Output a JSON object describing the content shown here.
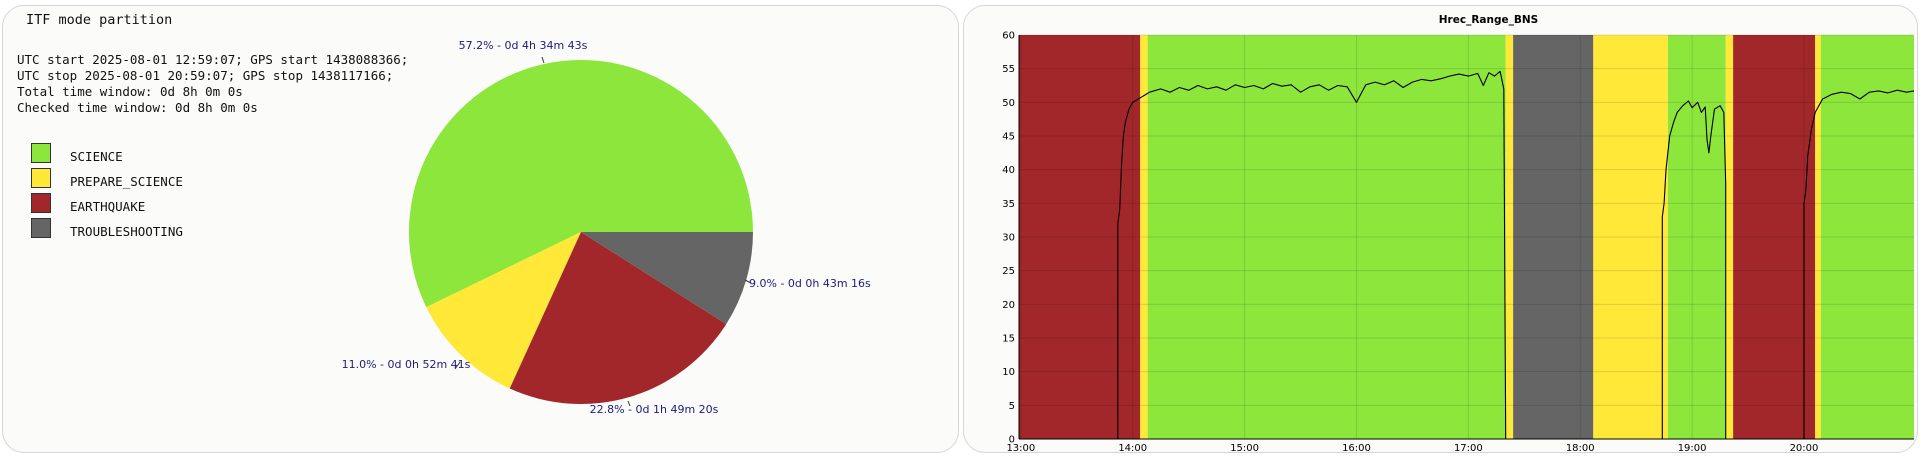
{
  "left": {
    "title": "ITF mode partition",
    "info_lines": [
      "UTC start 2025-08-01 12:59:07; GPS start 1438088366;",
      "UTC stop 2025-08-01 20:59:07; GPS stop 1438117166;",
      "Total time window: 0d 8h 0m 0s",
      "Checked time window: 0d 8h 0m 0s"
    ],
    "legend": [
      {
        "label": "SCIENCE",
        "color": "#8de63c"
      },
      {
        "label": "PREPARE_SCIENCE",
        "color": "#ffe838"
      },
      {
        "label": "EARTHQUAKE",
        "color": "#a2272a"
      },
      {
        "label": "TROUBLESHOOTING",
        "color": "#656565"
      }
    ]
  },
  "chart_data": [
    {
      "type": "pie",
      "slices": [
        {
          "name": "SCIENCE",
          "value": 57.2,
          "label": "57.2% - 0d 4h 34m 43s",
          "color": "#8de63c"
        },
        {
          "name": "PREPARE_SCIENCE",
          "value": 11.0,
          "label": "11.0% - 0d 0h 52m 41s",
          "color": "#ffe838"
        },
        {
          "name": "EARTHQUAKE",
          "value": 22.8,
          "label": "22.8% - 0d 1h 49m 20s",
          "color": "#a2272a"
        },
        {
          "name": "TROUBLESHOOTING",
          "value": 9.0,
          "label": "9.0% - 0d 0h 43m 16s",
          "color": "#656565"
        }
      ]
    },
    {
      "type": "line",
      "title": "Hrec_Range_BNS",
      "xlabel": "",
      "ylabel": "",
      "x_range": [
        "12:59",
        "20:59"
      ],
      "ylim": [
        0,
        60
      ],
      "y_ticks": [
        0,
        5,
        10,
        15,
        20,
        25,
        30,
        35,
        40,
        45,
        50,
        55,
        60
      ],
      "x_ticks": [
        "13:00",
        "14:00",
        "15:00",
        "16:00",
        "17:00",
        "18:00",
        "19:00",
        "20:00"
      ],
      "grid": true,
      "mode_bands": [
        {
          "start": "12:59",
          "end": "14:04",
          "mode": "EARTHQUAKE",
          "color": "#a2272a"
        },
        {
          "start": "14:04",
          "end": "14:08",
          "mode": "PREPARE_SCIENCE",
          "color": "#ffe838"
        },
        {
          "start": "14:08",
          "end": "17:20",
          "mode": "SCIENCE",
          "color": "#8de63c"
        },
        {
          "start": "17:20",
          "end": "17:24",
          "mode": "PREPARE_SCIENCE",
          "color": "#ffe838"
        },
        {
          "start": "17:24",
          "end": "18:07",
          "mode": "TROUBLESHOOTING",
          "color": "#656565"
        },
        {
          "start": "18:07",
          "end": "18:47",
          "mode": "PREPARE_SCIENCE",
          "color": "#ffe838"
        },
        {
          "start": "18:47",
          "end": "19:18",
          "mode": "SCIENCE",
          "color": "#8de63c"
        },
        {
          "start": "19:18",
          "end": "19:22",
          "mode": "PREPARE_SCIENCE",
          "color": "#ffe838"
        },
        {
          "start": "19:22",
          "end": "20:06",
          "mode": "EARTHQUAKE",
          "color": "#a2272a"
        },
        {
          "start": "20:06",
          "end": "20:09",
          "mode": "PREPARE_SCIENCE",
          "color": "#ffe838"
        },
        {
          "start": "20:09",
          "end": "20:59",
          "mode": "SCIENCE",
          "color": "#8de63c"
        }
      ],
      "series": [
        {
          "points": [
            [
              "12:59",
              0
            ],
            [
              "13:52",
              0
            ],
            [
              "13:52",
              32
            ],
            [
              "13:53",
              34
            ],
            [
              "13:54",
              41
            ],
            [
              "13:55",
              45
            ],
            [
              "13:56",
              47
            ],
            [
              "13:58",
              49
            ],
            [
              "14:00",
              50
            ],
            [
              "14:03",
              50.5
            ],
            [
              "14:06",
              51
            ],
            [
              "14:09",
              51.5
            ],
            [
              "14:15",
              52
            ],
            [
              "14:20",
              51.5
            ],
            [
              "14:25",
              52.2
            ],
            [
              "14:30",
              51.8
            ],
            [
              "14:35",
              52.5
            ],
            [
              "14:40",
              52
            ],
            [
              "14:45",
              52.3
            ],
            [
              "14:50",
              51.8
            ],
            [
              "14:55",
              52.6
            ],
            [
              "15:00",
              52.2
            ],
            [
              "15:05",
              52.5
            ],
            [
              "15:10",
              52
            ],
            [
              "15:15",
              52.8
            ],
            [
              "15:20",
              52.4
            ],
            [
              "15:25",
              52.6
            ],
            [
              "15:30",
              51.5
            ],
            [
              "15:35",
              52.3
            ],
            [
              "15:40",
              52.6
            ],
            [
              "15:45",
              51.8
            ],
            [
              "15:50",
              52.5
            ],
            [
              "15:55",
              52.3
            ],
            [
              "16:00",
              50
            ],
            [
              "16:05",
              52.6
            ],
            [
              "16:10",
              53
            ],
            [
              "16:15",
              52.6
            ],
            [
              "16:20",
              53.2
            ],
            [
              "16:25",
              52.2
            ],
            [
              "16:30",
              53
            ],
            [
              "16:35",
              53.4
            ],
            [
              "16:40",
              53.2
            ],
            [
              "16:45",
              53.5
            ],
            [
              "16:50",
              53.9
            ],
            [
              "16:55",
              54.2
            ],
            [
              "17:00",
              53.9
            ],
            [
              "17:05",
              54.3
            ],
            [
              "17:08",
              52.5
            ],
            [
              "17:11",
              54.4
            ],
            [
              "17:14",
              53.9
            ],
            [
              "17:17",
              54.6
            ],
            [
              "17:19",
              52
            ],
            [
              "17:20",
              0
            ],
            [
              "18:44",
              0
            ],
            [
              "18:44",
              33
            ],
            [
              "18:45",
              35
            ],
            [
              "18:46",
              40
            ],
            [
              "18:48",
              45
            ],
            [
              "18:50",
              47
            ],
            [
              "18:52",
              48.5
            ],
            [
              "18:55",
              49.5
            ],
            [
              "18:58",
              50.2
            ],
            [
              "19:00",
              49.2
            ],
            [
              "19:03",
              50
            ],
            [
              "19:05",
              48.5
            ],
            [
              "19:07",
              49.3
            ],
            [
              "19:08",
              44.5
            ],
            [
              "19:09",
              42.5
            ],
            [
              "19:10",
              45
            ],
            [
              "19:12",
              49
            ],
            [
              "19:15",
              49.5
            ],
            [
              "19:17",
              48.5
            ],
            [
              "19:18",
              38
            ],
            [
              "19:18",
              0
            ],
            [
              "20:00",
              0
            ],
            [
              "20:00",
              35
            ],
            [
              "20:01",
              37
            ],
            [
              "20:02",
              42
            ],
            [
              "20:04",
              46
            ],
            [
              "20:06",
              48.5
            ],
            [
              "20:08",
              49.5
            ],
            [
              "20:10",
              50.5
            ],
            [
              "20:15",
              51.2
            ],
            [
              "20:20",
              51.5
            ],
            [
              "20:25",
              51.3
            ],
            [
              "20:30",
              50.5
            ],
            [
              "20:35",
              51.5
            ],
            [
              "20:40",
              51.7
            ],
            [
              "20:45",
              51.4
            ],
            [
              "20:50",
              51.8
            ],
            [
              "20:55",
              51.5
            ],
            [
              "20:59",
              51.7
            ]
          ]
        }
      ]
    }
  ]
}
